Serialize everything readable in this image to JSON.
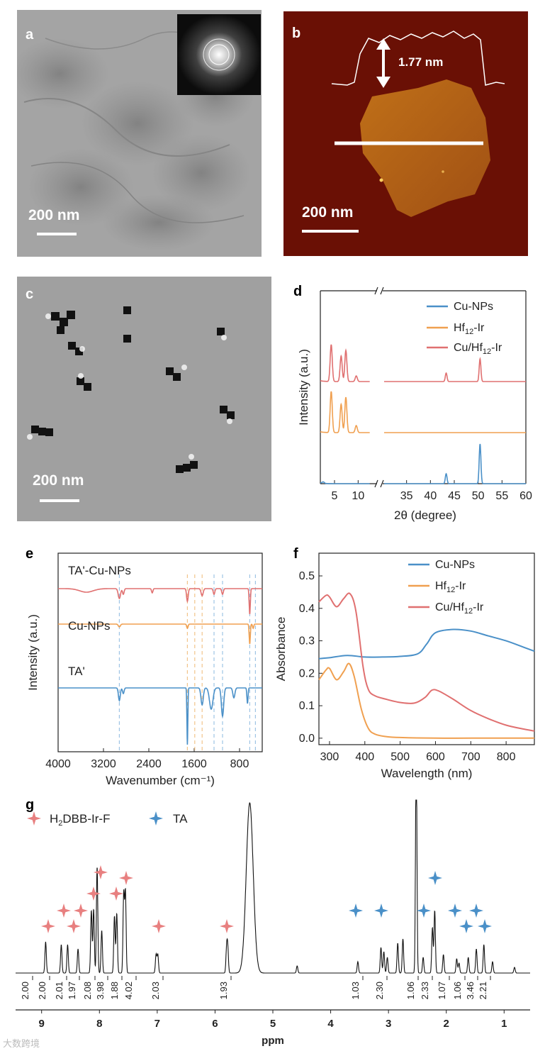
{
  "panels": {
    "a": {
      "label": "a",
      "scale_text": "200 nm"
    },
    "b": {
      "label": "b",
      "scale_text": "200 nm",
      "height_text": "1.77 nm"
    },
    "c": {
      "label": "c",
      "scale_text": "200 nm"
    },
    "d": {
      "label": "d"
    },
    "e": {
      "label": "e"
    },
    "f": {
      "label": "f"
    },
    "g": {
      "label": "g"
    }
  },
  "chart_data": [
    {
      "id": "d",
      "type": "line",
      "title": "",
      "xlabel": "2θ (degree)",
      "ylabel": "Intensity (a.u.)",
      "x_ticks_left": [
        5,
        10
      ],
      "x_ticks_right": [
        35,
        40,
        45,
        50,
        55,
        60
      ],
      "xlim_left": [
        2,
        14
      ],
      "xlim_right": [
        30,
        60
      ],
      "legend_position": "top-right",
      "series": [
        {
          "name": "Cu-NPs",
          "color": "#4a90c8",
          "peaks": [
            43.3,
            50.4
          ]
        },
        {
          "name": "Hf12-Ir",
          "color": "#f0a050",
          "peaks": [
            4.3,
            6.4,
            7.4
          ]
        },
        {
          "name": "Cu/Hf12-Ir",
          "color": "#e07070",
          "peaks": [
            4.3,
            6.4,
            7.4,
            43.3,
            50.4
          ]
        }
      ]
    },
    {
      "id": "e",
      "type": "line",
      "title": "",
      "xlabel": "Wavenumber (cm⁻¹)",
      "ylabel": "Intensity (a.u.)",
      "x_ticks": [
        4000,
        3200,
        2400,
        1600,
        800
      ],
      "xlim": [
        4000,
        400
      ],
      "series": [
        {
          "name": "TA'-Cu-NPs",
          "color": "#e07070"
        },
        {
          "name": "Cu-NPs",
          "color": "#f0a050"
        },
        {
          "name": "TA'",
          "color": "#4a90c8"
        }
      ]
    },
    {
      "id": "f",
      "type": "line",
      "title": "",
      "xlabel": "Wavelength (nm)",
      "ylabel": "Absorbance",
      "x_ticks": [
        300,
        400,
        500,
        600,
        700,
        800
      ],
      "y_ticks": [
        0.0,
        0.1,
        0.2,
        0.3,
        0.4,
        0.5
      ],
      "xlim": [
        270,
        880
      ],
      "ylim": [
        -0.02,
        0.57
      ],
      "legend_position": "top-right",
      "series": [
        {
          "name": "Cu-NPs",
          "color": "#4a90c8",
          "x": [
            270,
            300,
            350,
            400,
            450,
            500,
            550,
            575,
            600,
            650,
            700,
            750,
            800,
            850,
            880
          ],
          "y": [
            0.245,
            0.248,
            0.255,
            0.25,
            0.25,
            0.252,
            0.26,
            0.29,
            0.325,
            0.335,
            0.33,
            0.315,
            0.3,
            0.28,
            0.268
          ]
        },
        {
          "name": "Hf12-Ir",
          "color": "#f0a050",
          "x": [
            270,
            290,
            300,
            320,
            340,
            355,
            370,
            390,
            410,
            430,
            460,
            500,
            600,
            700,
            880
          ],
          "y": [
            0.18,
            0.21,
            0.215,
            0.18,
            0.205,
            0.23,
            0.19,
            0.09,
            0.03,
            0.012,
            0.005,
            0.002,
            0.0,
            0.0,
            0.0
          ]
        },
        {
          "name": "Cu/Hf12-Ir",
          "color": "#e07070",
          "x": [
            270,
            290,
            300,
            320,
            340,
            358,
            375,
            395,
            410,
            430,
            460,
            500,
            540,
            570,
            590,
            610,
            650,
            700,
            750,
            800,
            850,
            880
          ],
          "y": [
            0.42,
            0.44,
            0.435,
            0.405,
            0.43,
            0.445,
            0.39,
            0.22,
            0.15,
            0.13,
            0.12,
            0.11,
            0.108,
            0.125,
            0.148,
            0.145,
            0.12,
            0.085,
            0.06,
            0.04,
            0.028,
            0.022
          ]
        }
      ]
    },
    {
      "id": "g",
      "type": "line",
      "title": "",
      "xlabel": "ppm",
      "ylabel": "",
      "x_ticks": [
        9,
        8,
        7,
        6,
        5,
        4,
        3,
        2,
        1
      ],
      "xlim": [
        9.45,
        0.55
      ],
      "legend": [
        {
          "name": "H2DBB-Ir-F",
          "color": "#e88080"
        },
        {
          "name": "TA",
          "color": "#4a90c8"
        }
      ],
      "integrals": [
        "2.00",
        "2.00",
        "2.01",
        "1.97",
        "2.08",
        "3.98",
        "1.88",
        "4.02",
        "2.03",
        "1.93",
        "1.03",
        "2.30",
        "1.06",
        "2.33",
        "1.07",
        "1.06",
        "3.46",
        "2.21"
      ]
    }
  ],
  "legend_text": {
    "cu_nps": "Cu-NPs",
    "hf_ir_a": "Hf",
    "hf_ir_sub": "12",
    "hf_ir_b": "-Ir",
    "cuhf_ir_a": "Cu/Hf",
    "cuhf_ir_b": "-Ir",
    "ta_prime_cu": "TA'-Cu-NPs",
    "ta_prime": "TA'",
    "h2dbb_a": "H",
    "h2dbb_sub": "2",
    "h2dbb_b": "DBB-Ir-F",
    "ta": "TA"
  },
  "watermark": "大数跨境"
}
